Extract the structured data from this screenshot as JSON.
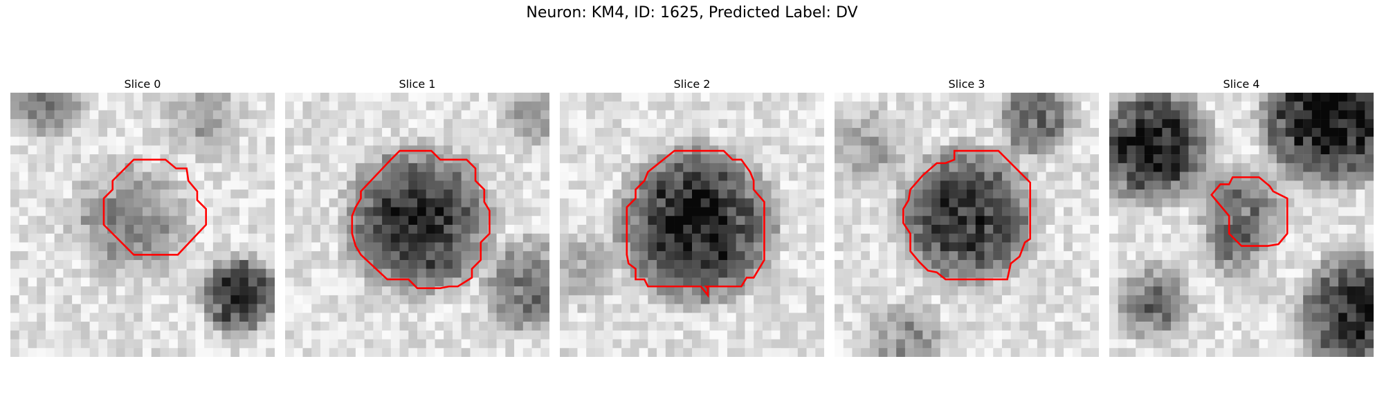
{
  "figure": {
    "title": "Neuron: KM4, ID: 1625, Predicted Label: DV",
    "contour_color": "#ff0000",
    "colormap": "gray"
  },
  "slices": [
    {
      "label": "Slice 0"
    },
    {
      "label": "Slice 1"
    },
    {
      "label": "Slice 2"
    },
    {
      "label": "Slice 3"
    },
    {
      "label": "Slice 4"
    }
  ]
}
